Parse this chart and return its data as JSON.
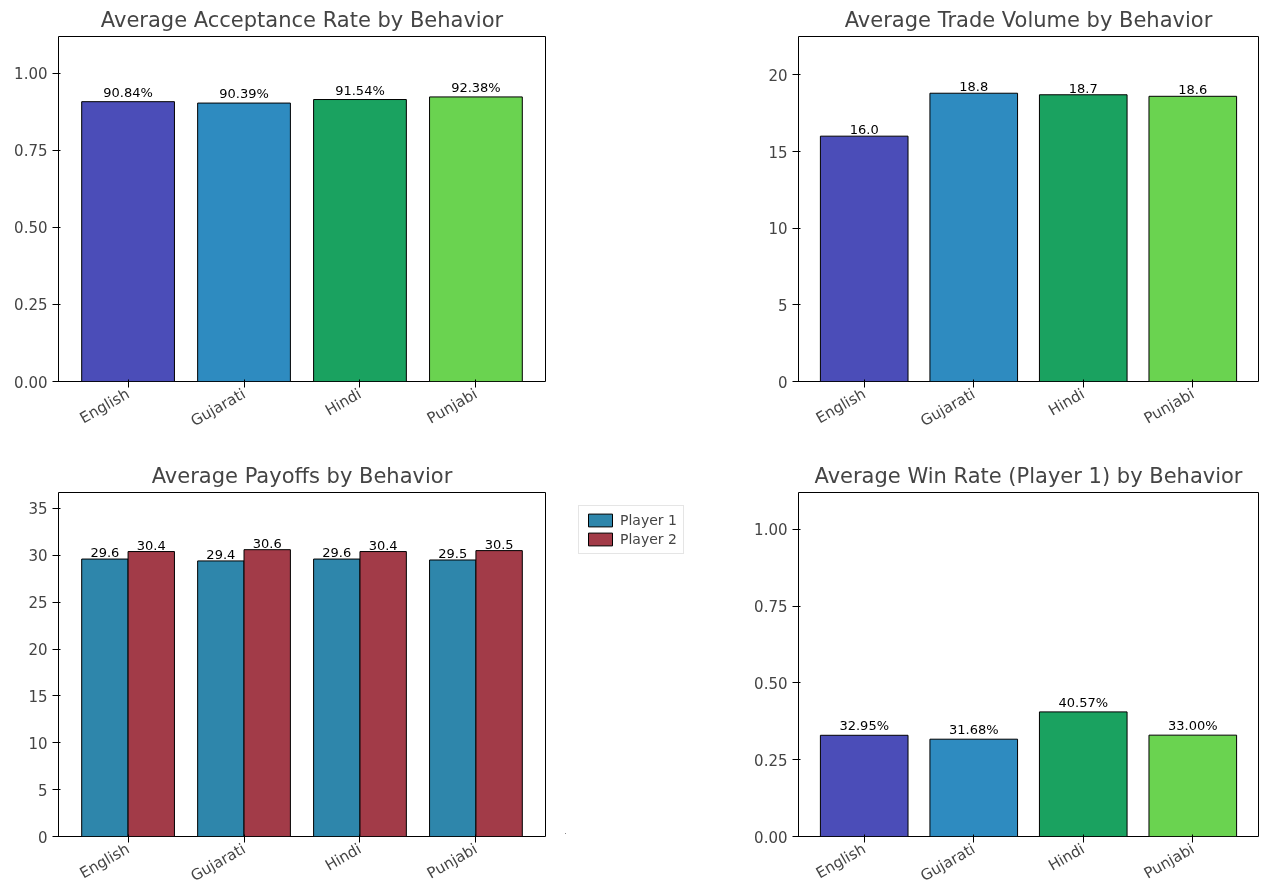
{
  "chart_data": [
    {
      "type": "bar",
      "title": "Average Acceptance Rate by Behavior",
      "categories": [
        "English",
        "Gujarati",
        "Hindi",
        "Punjabi"
      ],
      "values": [
        0.9084,
        0.9039,
        0.9154,
        0.9238
      ],
      "colors": [
        "#4b4db8",
        "#2e8bc0",
        "#1aa260",
        "#6ad350"
      ],
      "value_labels": [
        "90.84%",
        "90.39%",
        "91.54%",
        "92.38%"
      ],
      "ylim": [
        0,
        1.12
      ],
      "yticks": [
        {
          "value": 0,
          "label": "0.00"
        },
        {
          "value": 0.25,
          "label": "0.25"
        },
        {
          "value": 0.5,
          "label": "0.50"
        },
        {
          "value": 0.75,
          "label": "0.75"
        },
        {
          "value": 1,
          "label": "1.00"
        }
      ],
      "grid": false
    },
    {
      "type": "bar",
      "title": "Average Trade Volume by Behavior",
      "categories": [
        "English",
        "Gujarati",
        "Hindi",
        "Punjabi"
      ],
      "values": [
        16.0,
        18.8,
        18.7,
        18.6
      ],
      "colors": [
        "#4b4db8",
        "#2e8bc0",
        "#1aa260",
        "#6ad350"
      ],
      "value_labels": [
        "16.0",
        "18.8",
        "18.7",
        "18.6"
      ],
      "ylim": [
        0,
        22.5
      ],
      "yticks": [
        0,
        5,
        10,
        15,
        20
      ],
      "grid": false
    },
    {
      "type": "bar",
      "title": "Average Payoffs by Behavior",
      "categories": [
        "English",
        "Gujarati",
        "Hindi",
        "Punjabi"
      ],
      "series": [
        {
          "name": "Player 1",
          "color": "#2e86ab",
          "values": [
            29.6,
            29.4,
            29.6,
            29.5
          ]
        },
        {
          "name": "Player 2",
          "color": "#a23b48",
          "values": [
            30.4,
            30.6,
            30.4,
            30.5
          ]
        }
      ],
      "data_labels": true,
      "ylim": [
        0,
        36.7
      ],
      "yticks": [
        0,
        5,
        10,
        15,
        20,
        25,
        30,
        35
      ],
      "grid": false,
      "legend": "top right"
    },
    {
      "type": "bar",
      "title": "Average Win Rate (Player 1) by Behavior",
      "categories": [
        "English",
        "Gujarati",
        "Hindi",
        "Punjabi"
      ],
      "values": [
        0.3295,
        0.3168,
        0.4057,
        0.33
      ],
      "colors": [
        "#4b4db8",
        "#2e8bc0",
        "#1aa260",
        "#6ad350"
      ],
      "value_labels": [
        "32.95%",
        "31.68%",
        "40.57%",
        "33.00%"
      ],
      "ylim": [
        0,
        1.12
      ],
      "yticks": [
        {
          "value": 0,
          "label": "0.00"
        },
        {
          "value": 0.25,
          "label": "0.25"
        },
        {
          "value": 0.5,
          "label": "0.50"
        },
        {
          "value": 0.75,
          "label": "0.75"
        },
        {
          "value": 1,
          "label": "1.00"
        }
      ],
      "grid": false
    }
  ]
}
